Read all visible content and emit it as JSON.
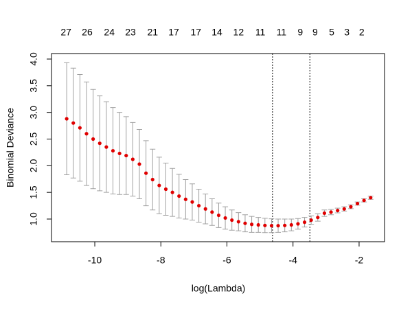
{
  "chart_data": {
    "type": "errorbar-scatter",
    "x_label": "log(Lambda)",
    "y_label": "Binomial Deviance",
    "x": [
      -10.85,
      -10.65,
      -10.45,
      -10.25,
      -10.05,
      -9.85,
      -9.65,
      -9.45,
      -9.25,
      -9.05,
      -8.85,
      -8.65,
      -8.45,
      -8.25,
      -8.05,
      -7.85,
      -7.65,
      -7.45,
      -7.25,
      -7.05,
      -6.85,
      -6.65,
      -6.45,
      -6.25,
      -6.05,
      -5.85,
      -5.65,
      -5.45,
      -5.25,
      -5.05,
      -4.85,
      -4.65,
      -4.45,
      -4.25,
      -4.05,
      -3.85,
      -3.65,
      -3.45,
      -3.25,
      -3.05,
      -2.85,
      -2.65,
      -2.45,
      -2.25,
      -2.05,
      -1.85,
      -1.65
    ],
    "values": [
      2.88,
      2.8,
      2.71,
      2.6,
      2.5,
      2.42,
      2.35,
      2.28,
      2.23,
      2.19,
      2.12,
      2.03,
      1.86,
      1.74,
      1.63,
      1.56,
      1.5,
      1.43,
      1.37,
      1.32,
      1.25,
      1.19,
      1.13,
      1.07,
      1.02,
      0.98,
      0.95,
      0.92,
      0.9,
      0.89,
      0.88,
      0.875,
      0.875,
      0.88,
      0.89,
      0.91,
      0.94,
      0.98,
      1.03,
      1.11,
      1.13,
      1.16,
      1.19,
      1.23,
      1.29,
      1.35,
      1.4
    ],
    "errors": [
      1.05,
      1.03,
      1.0,
      0.97,
      0.93,
      0.89,
      0.85,
      0.81,
      0.77,
      0.73,
      0.69,
      0.65,
      0.61,
      0.57,
      0.53,
      0.49,
      0.45,
      0.41,
      0.37,
      0.34,
      0.31,
      0.28,
      0.25,
      0.23,
      0.21,
      0.19,
      0.17,
      0.16,
      0.15,
      0.14,
      0.135,
      0.13,
      0.125,
      0.12,
      0.11,
      0.1,
      0.09,
      0.08,
      0.07,
      0.06,
      0.05,
      0.045,
      0.04,
      0.035,
      0.03,
      0.03,
      0.03
    ],
    "color": "#e00000",
    "error_color": "#a0a0a0",
    "xlim": [
      -11.31,
      -1.23
    ],
    "ylim": [
      0.575,
      4.103
    ],
    "xticks": [
      -10,
      -8,
      -6,
      -4,
      -2
    ],
    "yticks": [
      {
        "value": 1,
        "label": "1.0"
      },
      {
        "value": 1.5,
        "label": "1.5"
      },
      {
        "value": 2,
        "label": "2.0"
      },
      {
        "value": 2.5,
        "label": "2.5"
      },
      {
        "value": 3,
        "label": "3.0"
      },
      {
        "value": 3.5,
        "label": "3.5"
      },
      {
        "value": 4,
        "label": "4.0"
      }
    ],
    "vlines": [
      -4.62,
      -3.49
    ],
    "top_labels": {
      "x": [
        -10.87,
        -10.23,
        -9.56,
        -8.92,
        -8.25,
        -7.61,
        -6.94,
        -6.3,
        -5.65,
        -4.99,
        -4.35,
        -3.78,
        -3.33,
        -2.83,
        -2.37,
        -1.92
      ],
      "counts": [
        27,
        26,
        24,
        23,
        21,
        17,
        17,
        14,
        12,
        11,
        11,
        9,
        9,
        5,
        3,
        2
      ]
    }
  }
}
